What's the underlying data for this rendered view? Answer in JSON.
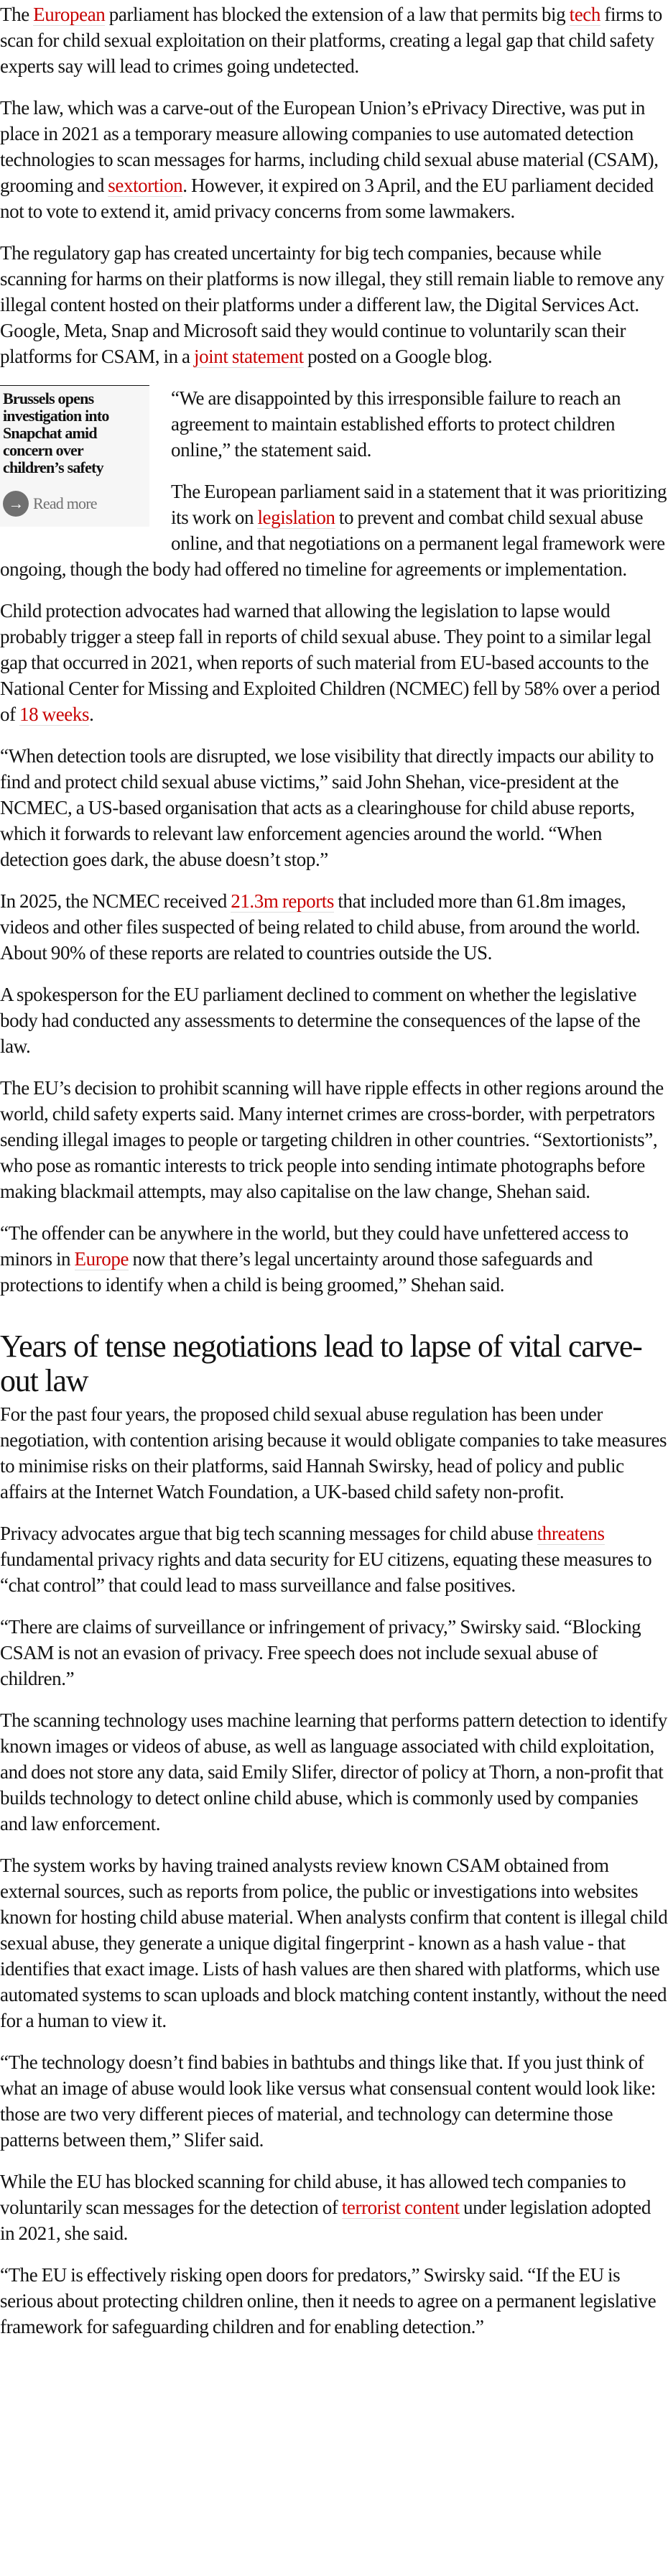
{
  "colors": {
    "link": "#c70000",
    "text": "#121212",
    "rich_link_bg": "#f6f6f6"
  },
  "rich_link": {
    "title": "Brussels opens investigation into Snapchat amid concern over children’s safety",
    "read_more": "Read more",
    "icon": "arrow-right-icon"
  },
  "heading": "Years of tense negotiations lead to lapse of vital carve-out law",
  "before": [
    [
      {
        "t": "The "
      },
      {
        "t": "European",
        "link": true
      },
      {
        "t": " parliament has blocked the extension of a law that permits big "
      },
      {
        "t": "tech",
        "link": true
      },
      {
        "t": " firms to scan for child sexual exploitation on their platforms, creating a legal gap that child safety experts say will lead to crimes going undetected."
      }
    ],
    [
      {
        "t": "The law, which was a carve-out of the European Union’s ePrivacy Directive, was put in place in 2021 as a temporary measure allowing companies to use automated detection technologies to scan messages for harms, including child sexual abuse material (CSAM), grooming and "
      },
      {
        "t": "sextortion",
        "link": true
      },
      {
        "t": ". However, it expired on 3 April, and the EU parliament decided not to vote to extend it, amid privacy concerns from some lawmakers."
      }
    ],
    [
      {
        "t": "The regulatory gap has created uncertainty for big tech companies, because while scanning for harms on their platforms is now illegal, they still remain liable to remove any illegal content hosted on their platforms under a different law, the Digital Services Act. Google, Meta, Snap and Microsoft said they would continue to voluntarily scan their platforms for CSAM, in a "
      },
      {
        "t": "joint statement",
        "link": true
      },
      {
        "t": " posted on a Google blog."
      }
    ]
  ],
  "middle": [
    [
      {
        "t": "“We are disappointed by this irresponsible failure to reach an agreement to maintain established efforts to protect children online,” the statement said."
      }
    ],
    [
      {
        "t": "The European parliament said in a statement that it was prioritizing its work on "
      },
      {
        "t": "legislation",
        "link": true
      },
      {
        "t": " to prevent and combat child sexual abuse online, and that negotiations on a permanent legal framework were ongoing, though the body had offered no timeline for agreements or implementation."
      }
    ],
    [
      {
        "t": "Child protection advocates had warned that allowing the legislation to lapse would probably trigger a steep fall in reports of child sexual abuse. They point to a similar legal gap that occurred in 2021, when reports of such material from EU-based accounts to the National Center for Missing and Exploited Children (NCMEC) fell by 58% over a period of "
      },
      {
        "t": "18 weeks",
        "link": true
      },
      {
        "t": "."
      }
    ],
    [
      {
        "t": "“When detection tools are disrupted, we lose visibility that directly impacts our ability to find and protect child sexual abuse victims,” said John Shehan, vice-president at the NCMEC, a US-based organisation that acts as a clearinghouse for child abuse reports, which it forwards to relevant law enforcement agencies around the world. “When detection goes dark, the abuse doesn’t stop.”"
      }
    ],
    [
      {
        "t": "In 2025, the NCMEC received "
      },
      {
        "t": "21.3m reports",
        "link": true
      },
      {
        "t": " that included more than 61.8m images, videos and other files suspected of being related to child abuse, from around the world. About 90% of these reports are related to countries outside the US."
      }
    ],
    [
      {
        "t": "A spokesperson for the EU parliament declined to comment on whether the legislative body had conducted any assessments to determine the consequences of the lapse of the law."
      }
    ],
    [
      {
        "t": "The EU’s decision to prohibit scanning will have ripple effects in other regions around the world, child safety experts said. Many internet crimes are cross-border, with perpetrators sending illegal images to people or targeting children in other countries. “Sextortionists”, who pose as romantic interests to trick people into sending intimate photographs before making blackmail attempts, may also capitalise on the law change, Shehan said."
      }
    ],
    [
      {
        "t": "“The offender can be anywhere in the world, but they could have unfettered access to minors in "
      },
      {
        "t": "Europe",
        "link": true
      },
      {
        "t": " now that there’s legal uncertainty around those safeguards and protections to identify when a child is being groomed,” Shehan said."
      }
    ]
  ],
  "after": [
    [
      {
        "t": "For the past four years, the proposed child sexual abuse regulation has been under negotiation, with contention arising because it would obligate companies to take measures to minimise risks on their platforms, said Hannah Swirsky, head of policy and public affairs at the Internet Watch Foundation, a UK-based child safety non-profit."
      }
    ],
    [
      {
        "t": "Privacy advocates argue that big tech scanning messages for child abuse "
      },
      {
        "t": "threatens",
        "link": true
      },
      {
        "t": " fundamental privacy rights and data security for EU citizens, equating these measures to “chat control” that could lead to mass surveillance and false positives."
      }
    ],
    [
      {
        "t": "“There are claims of surveillance or infringement of privacy,” Swirsky said. “Blocking CSAM is not an evasion of privacy. Free speech does not include sexual abuse of children.”"
      }
    ],
    [
      {
        "t": "The scanning technology uses machine learning that performs pattern detection to identify known images or videos of abuse, as well as language associated with child exploitation, and does not store any data, said Emily Slifer, director of policy at Thorn, a non-profit that builds technology to detect online child abuse, which is commonly used by companies and law enforcement."
      }
    ],
    [
      {
        "t": "The system works by having trained analysts review known CSAM obtained from external sources, such as reports from police, the public or investigations into websites known for hosting child abuse material. When analysts confirm that content is illegal child sexual abuse, they generate a unique digital fingerprint - known as a hash value - that identifies that exact image. Lists of hash values are then shared with platforms, which use automated systems to scan uploads and block matching content instantly, without the need for a human to view it."
      }
    ],
    [
      {
        "t": "“The technology doesn’t find babies in bathtubs and things like that. If you just think of what an image of abuse would look like versus what consensual content would look like: those are two very different pieces of material, and technology can determine those patterns between them,” Slifer said."
      }
    ],
    [
      {
        "t": "While the EU has blocked scanning for child abuse, it has allowed tech companies to voluntarily scan messages for the detection of "
      },
      {
        "t": "terrorist content",
        "link": true
      },
      {
        "t": " under legislation adopted in 2021, she said."
      }
    ],
    [
      {
        "t": "“The EU is effectively risking open doors for predators,” Swirsky said. “If the EU is serious about protecting children online, then it needs to agree on a permanent legislative framework for safeguarding children and for enabling detection.”"
      }
    ]
  ]
}
